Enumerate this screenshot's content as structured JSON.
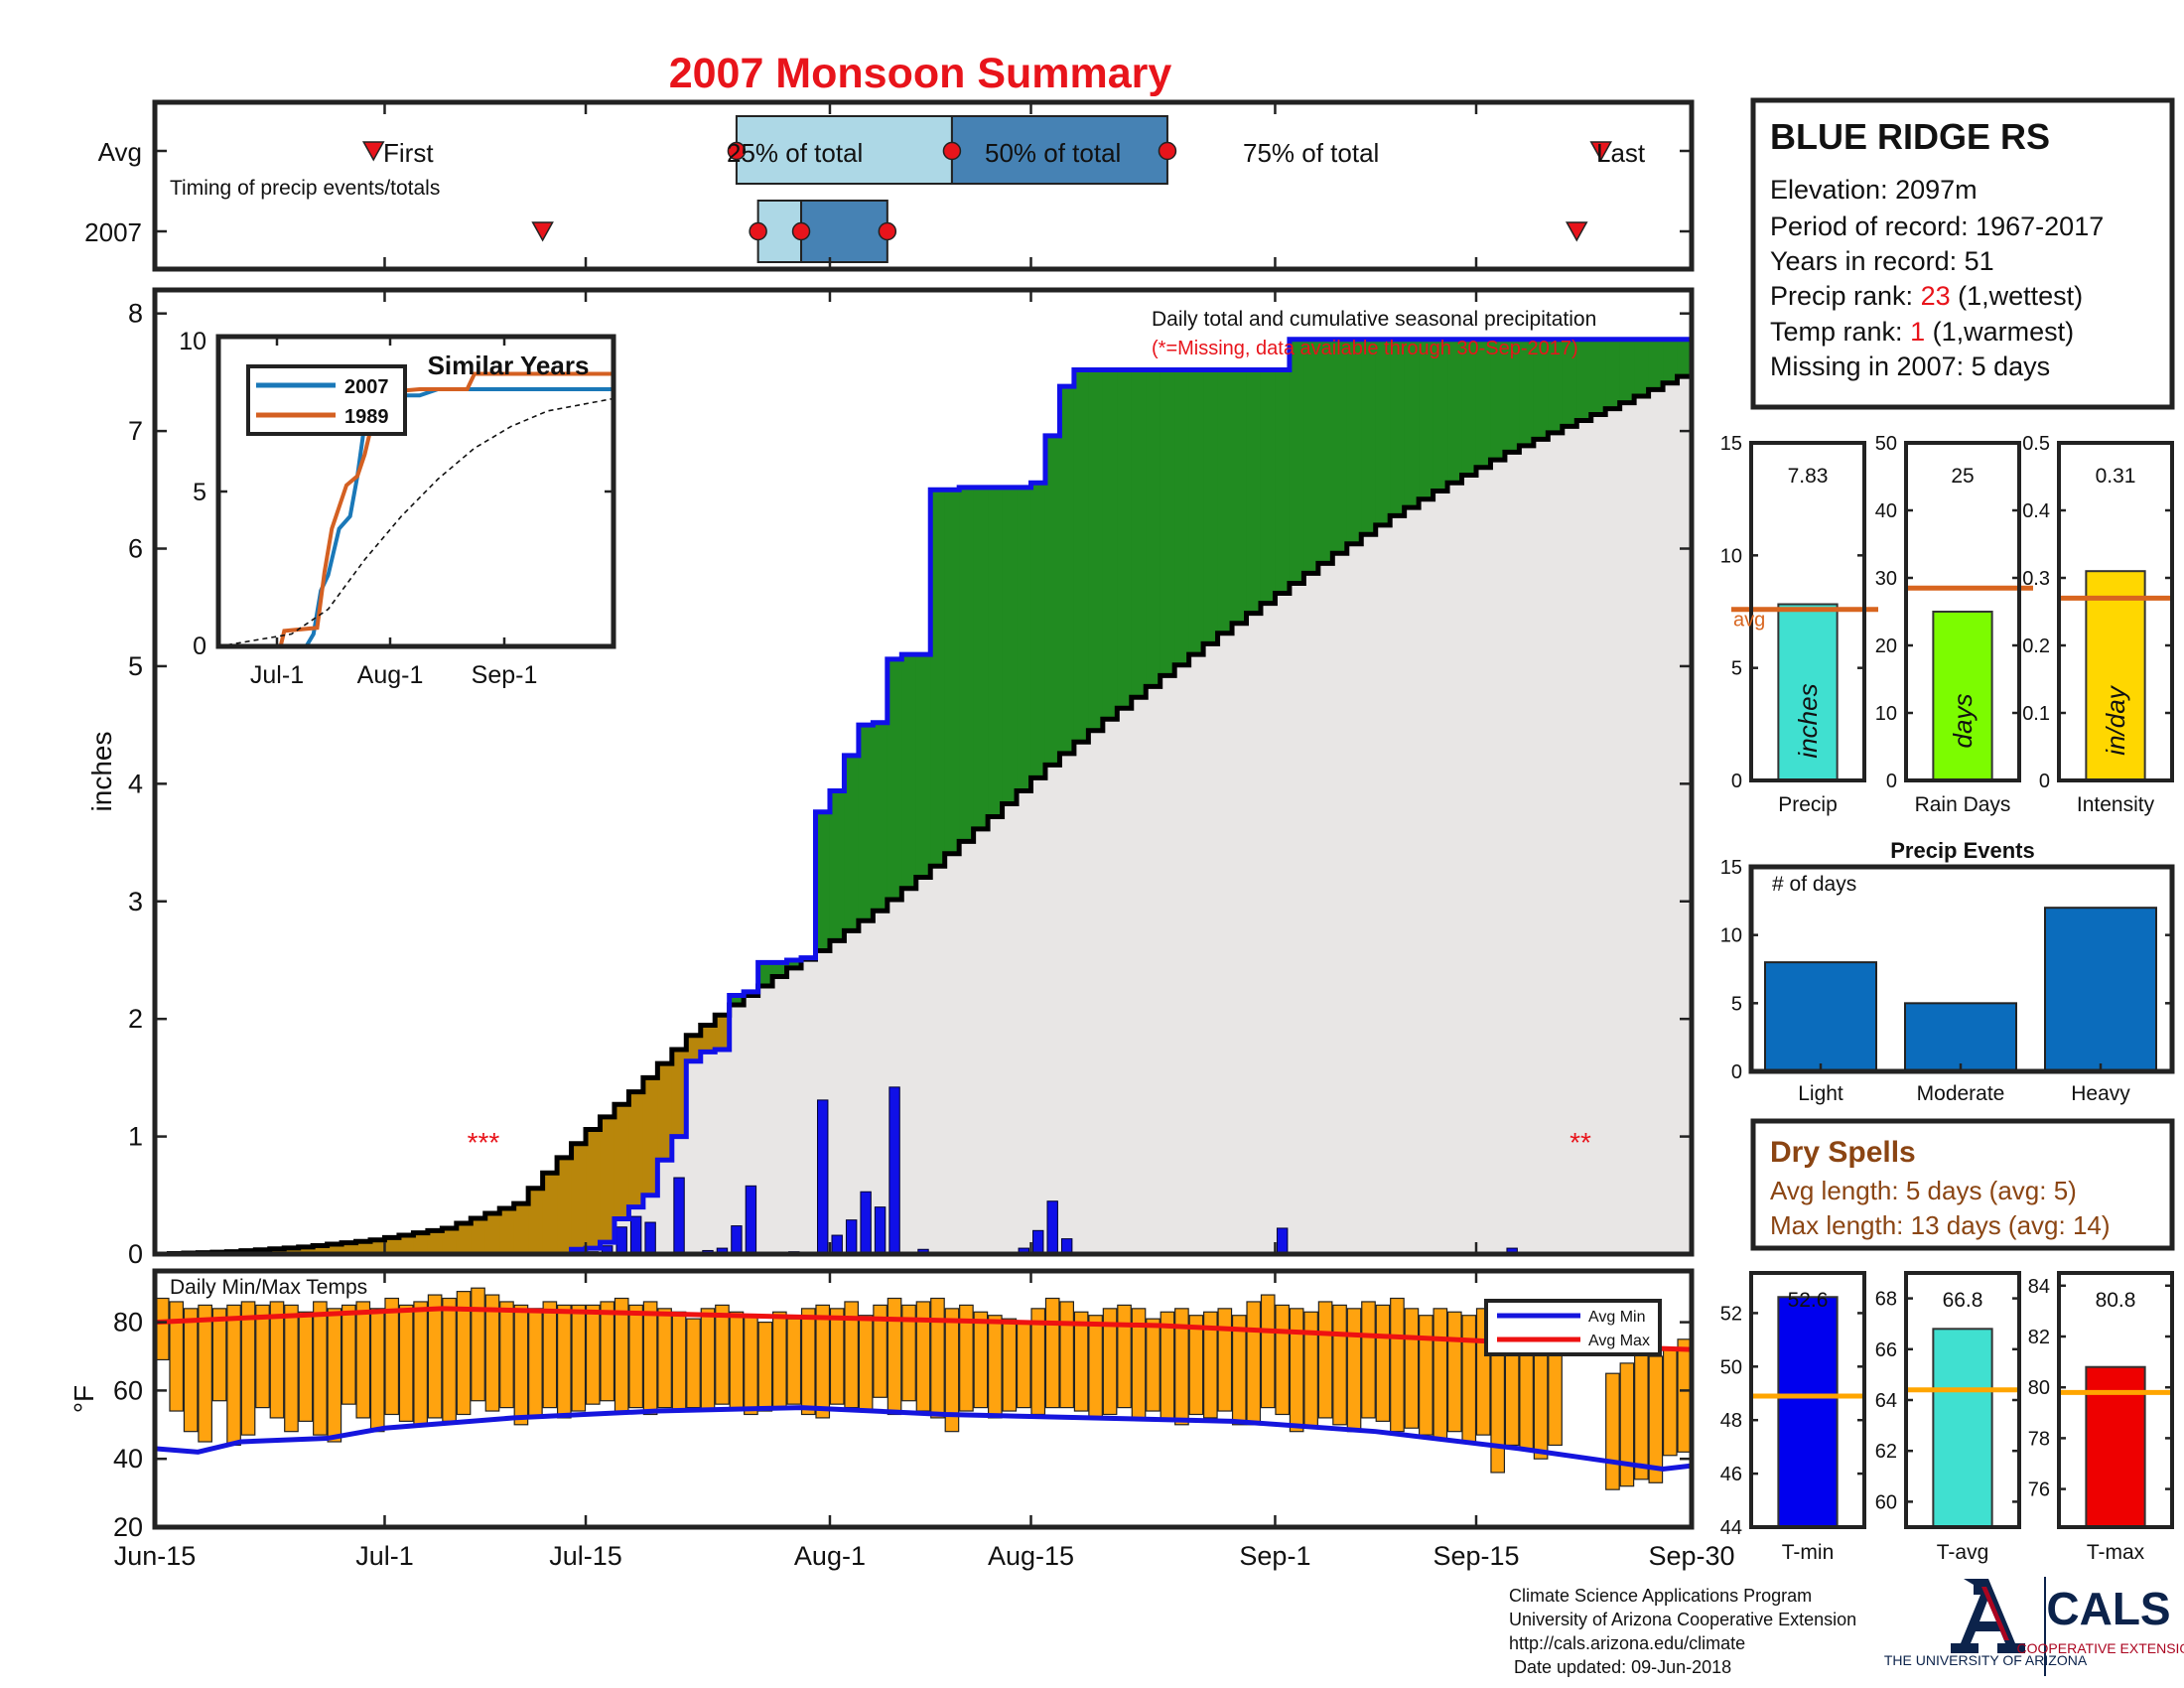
{
  "title": "2007 Monsoon Summary",
  "timing": {
    "row_labels": [
      "Avg",
      "2007"
    ],
    "caption": "Timing of precip events/totals",
    "avg_labels": {
      "first": "First",
      "p25": "25% of total",
      "p50": "50% of total",
      "p75": "75% of total",
      "last": "Last"
    },
    "avg_days": {
      "first": 15.5,
      "p25": 40.5,
      "p50": 55.5,
      "p75": 70.5,
      "last": 100
    }
  },
  "x_axis": {
    "ticks": [
      {
        "day": 0,
        "label": "Jun-15"
      },
      {
        "day": 16,
        "label": "Jul-1"
      },
      {
        "day": 30,
        "label": "Jul-15"
      },
      {
        "day": 47,
        "label": "Aug-1"
      },
      {
        "day": 61,
        "label": "Aug-15"
      },
      {
        "day": 78,
        "label": "Sep-1"
      },
      {
        "day": 92,
        "label": "Sep-15"
      },
      {
        "day": 107,
        "label": "Sep-30"
      }
    ]
  },
  "station": {
    "name": "BLUE RIDGE RS",
    "elevation": "Elevation: 2097m",
    "period": "Period of record: 1967-2017",
    "years": "Years in record: 51",
    "precip_rank_label": "Precip rank: ",
    "precip_rank_value": "23",
    "precip_rank_suffix": " (1,wettest)",
    "temp_rank_label": "Temp rank: ",
    "temp_rank_value": "1",
    "temp_rank_suffix": " (1,warmest)",
    "missing": "Missing in 2007: 5 days"
  },
  "main_chart": {
    "ylabel": "inches",
    "yticks": [
      0,
      1,
      2,
      3,
      4,
      5,
      6,
      7,
      8
    ],
    "annotation": "Daily total and cumulative seasonal precipitation",
    "missing_note": "(*=Missing, data available through 30-Sep-2017)",
    "missing_marks": [
      "***",
      "**"
    ]
  },
  "inset": {
    "title": "Similar Years",
    "legend": [
      "2007",
      "1989"
    ],
    "xticks": [
      "Jul-1",
      "Aug-1",
      "Sep-1"
    ],
    "yticks": [
      "0",
      "5",
      "10"
    ]
  },
  "summary_bars": [
    {
      "label": "Precip",
      "unit": "inches",
      "value": "7.83",
      "avg_label": "avg",
      "yticks": [
        "0",
        "5",
        "10",
        "15"
      ]
    },
    {
      "label": "Rain Days",
      "unit": "days",
      "value": "25",
      "yticks": [
        "0",
        "10",
        "20",
        "30",
        "40",
        "50"
      ]
    },
    {
      "label": "Intensity",
      "unit": "in/day",
      "value": "0.31",
      "yticks": [
        "0",
        "0.1",
        "0.2",
        "0.3",
        "0.4",
        "0.5"
      ]
    }
  ],
  "precip_events": {
    "title": "Precip Events",
    "ylabel": "# of days",
    "categories": [
      "Light",
      "Moderate",
      "Heavy"
    ],
    "yticks": [
      "0",
      "5",
      "10",
      "15"
    ]
  },
  "dry_spells": {
    "title": "Dry Spells",
    "avg_length": "Avg length: 5 days (avg: 5)",
    "max_length": "Max length: 13 days (avg: 14)"
  },
  "temps": {
    "title": "Daily Min/Max Temps",
    "ylabel": "°F",
    "yticks": [
      "20",
      "40",
      "60",
      "80"
    ],
    "legend": [
      "Avg Min",
      "Avg Max"
    ]
  },
  "temp_bars": [
    {
      "label": "T-min",
      "value": "52.6",
      "yticks": [
        "44",
        "46",
        "48",
        "50",
        "52"
      ]
    },
    {
      "label": "T-avg",
      "value": "66.8",
      "yticks": [
        "60",
        "62",
        "64",
        "66",
        "68"
      ]
    },
    {
      "label": "T-max",
      "value": "80.8",
      "yticks": [
        "76",
        "78",
        "80",
        "82",
        "84"
      ]
    }
  ],
  "footer": {
    "lines": [
      "Climate Science Applications Program",
      "University of Arizona Cooperative Extension",
      "http://cals.arizona.edu/climate",
      " Date updated: 09-Jun-2018"
    ],
    "ua_logo": "THE UNIVERSITY OF ARIZONA",
    "cals_logo": "CALS",
    "cals_sub": "COOPERATIVE EXTENSION"
  },
  "colors": {
    "title": "#e8141b",
    "above_avg": "#218b21",
    "below_avg": "#b8860b",
    "avg_fill": "#e8e6e5",
    "daily_bar": "#1010e8",
    "cum_2007": "#1010e8",
    "temp_bar": "#ffa30f",
    "avg_max": "#ee1111",
    "avg_min": "#1515dd",
    "line_2007": "#1a78b8",
    "line_1989": "#d46022",
    "avg_ref": "#d8651f",
    "precip_bar": "#40e0d0",
    "raindays_bar": "#7cfc00",
    "intensity_bar": "#ffd700",
    "events_bar": "#0b6cbc",
    "tmin_bar": "#0000ee",
    "tavg_bar": "#40e0d0",
    "tmax_bar": "#ee0000",
    "tref": "#ffa500",
    "dry": "#8b4513",
    "ua_navy": "#0c234b",
    "ua_red": "#ab0520"
  },
  "chart_data": [
    {
      "type": "area",
      "name": "daily and cumulative seasonal precipitation",
      "x_unit": "days after Jun-15",
      "ylim": [
        0,
        8.2
      ],
      "cumulative_2007": [
        [
          0,
          0
        ],
        [
          29,
          0.04
        ],
        [
          30,
          0.05
        ],
        [
          31,
          0.1
        ],
        [
          32,
          0.3
        ],
        [
          33,
          0.4
        ],
        [
          34,
          0.5
        ],
        [
          35,
          0.8
        ],
        [
          36,
          1.0
        ],
        [
          37,
          1.64
        ],
        [
          38,
          1.72
        ],
        [
          39,
          1.74
        ],
        [
          40,
          2.2
        ],
        [
          41,
          2.23
        ],
        [
          42,
          2.48
        ],
        [
          43,
          2.48
        ],
        [
          44,
          2.5
        ],
        [
          45,
          2.52
        ],
        [
          46,
          3.76
        ],
        [
          47,
          3.94
        ],
        [
          48,
          4.24
        ],
        [
          49,
          4.5
        ],
        [
          50,
          4.52
        ],
        [
          51,
          5.06
        ],
        [
          52,
          5.1
        ],
        [
          53,
          5.1
        ],
        [
          54,
          6.5
        ],
        [
          55,
          6.5
        ],
        [
          56,
          6.52
        ],
        [
          60,
          6.52
        ],
        [
          61,
          6.56
        ],
        [
          62,
          6.96
        ],
        [
          63,
          7.38
        ],
        [
          64,
          7.52
        ],
        [
          78,
          7.52
        ],
        [
          79,
          7.78
        ],
        [
          95,
          7.78
        ],
        [
          107,
          7.83
        ]
      ],
      "average_cumulative": [
        [
          0,
          0
        ],
        [
          5,
          0.02
        ],
        [
          10,
          0.06
        ],
        [
          15,
          0.12
        ],
        [
          20,
          0.22
        ],
        [
          25,
          0.43
        ],
        [
          28,
          0.82
        ],
        [
          30,
          1.06
        ],
        [
          33,
          1.38
        ],
        [
          35,
          1.62
        ],
        [
          37,
          1.86
        ],
        [
          40,
          2.12
        ],
        [
          43,
          2.36
        ],
        [
          46,
          2.58
        ],
        [
          50,
          2.92
        ],
        [
          54,
          3.3
        ],
        [
          58,
          3.72
        ],
        [
          62,
          4.16
        ],
        [
          66,
          4.55
        ],
        [
          70,
          4.92
        ],
        [
          74,
          5.28
        ],
        [
          78,
          5.62
        ],
        [
          82,
          5.96
        ],
        [
          86,
          6.28
        ],
        [
          90,
          6.56
        ],
        [
          94,
          6.82
        ],
        [
          98,
          7.04
        ],
        [
          102,
          7.24
        ],
        [
          107,
          7.52
        ]
      ],
      "daily_precip": [
        [
          29,
          0.04
        ],
        [
          30,
          0.02
        ],
        [
          31,
          0.07
        ],
        [
          32,
          0.23
        ],
        [
          33,
          0.32
        ],
        [
          34,
          0.27
        ],
        [
          36,
          0.65
        ],
        [
          38,
          0.03
        ],
        [
          39,
          0.05
        ],
        [
          40,
          0.24
        ],
        [
          41,
          0.58
        ],
        [
          44,
          0.02
        ],
        [
          46,
          1.31
        ],
        [
          47,
          0.16
        ],
        [
          48,
          0.29
        ],
        [
          49,
          0.53
        ],
        [
          50,
          0.4
        ],
        [
          51,
          1.42
        ],
        [
          53,
          0.04
        ],
        [
          60,
          0.05
        ],
        [
          61,
          0.2
        ],
        [
          62,
          0.45
        ],
        [
          63,
          0.13
        ],
        [
          78,
          0.22
        ],
        [
          94,
          0.05
        ]
      ],
      "similar_years_inset": {
        "xticks": [
          "Jul-1",
          "Aug-1",
          "Sep-1"
        ],
        "ylim": [
          0,
          10
        ],
        "series": [
          {
            "name": "2007",
            "points": [
              [
                0,
                0
              ],
              [
                24,
                0
              ],
              [
                26,
                0.4
              ],
              [
                28,
                1.8
              ],
              [
                30,
                2.3
              ],
              [
                33,
                3.8
              ],
              [
                36,
                4.2
              ],
              [
                38,
                5.5
              ],
              [
                40,
                7.2
              ],
              [
                43,
                8.1
              ],
              [
                55,
                8.1
              ],
              [
                60,
                8.3
              ],
              [
                80,
                8.3
              ],
              [
                108,
                8.3
              ]
            ]
          },
          {
            "name": "1989",
            "points": [
              [
                0,
                0
              ],
              [
                17,
                0
              ],
              [
                18,
                0.5
              ],
              [
                27,
                0.6
              ],
              [
                29,
                2.4
              ],
              [
                31,
                3.8
              ],
              [
                33,
                4.5
              ],
              [
                35,
                5.2
              ],
              [
                38,
                5.5
              ],
              [
                40,
                6.2
              ],
              [
                42,
                7.2
              ],
              [
                45,
                8.2
              ],
              [
                55,
                8.3
              ],
              [
                68,
                8.3
              ],
              [
                70,
                8.8
              ],
              [
                108,
                8.8
              ]
            ]
          },
          {
            "name": "average",
            "points": [
              [
                0,
                0
              ],
              [
                20,
                0.4
              ],
              [
                30,
                1.2
              ],
              [
                40,
                2.8
              ],
              [
                50,
                4.2
              ],
              [
                60,
                5.4
              ],
              [
                70,
                6.4
              ],
              [
                80,
                7.1
              ],
              [
                90,
                7.6
              ],
              [
                108,
                8.0
              ]
            ]
          }
        ]
      }
    },
    {
      "type": "bar",
      "name": "season summary",
      "categories": [
        "Precip",
        "Rain Days",
        "Intensity"
      ],
      "values": [
        7.83,
        25,
        0.31
      ],
      "averages": [
        7.6,
        28.5,
        0.27
      ],
      "ylims": [
        [
          0,
          15
        ],
        [
          0,
          50
        ],
        [
          0,
          0.5
        ]
      ]
    },
    {
      "type": "bar",
      "name": "precip events",
      "categories": [
        "Light",
        "Moderate",
        "Heavy"
      ],
      "values": [
        8,
        5,
        12
      ],
      "ylim": [
        0,
        15
      ]
    },
    {
      "type": "bar",
      "name": "daily min/max temps",
      "x_unit": "days after Jun-15",
      "ylim": [
        20,
        95
      ],
      "max_temps": [
        87,
        86,
        84,
        85,
        84,
        85,
        86,
        85,
        86,
        85,
        83,
        86,
        84,
        85,
        86,
        84,
        87,
        85,
        86,
        88,
        87,
        89,
        90,
        88,
        86,
        85,
        84,
        86,
        85,
        85,
        85,
        86,
        87,
        85,
        86,
        84,
        83,
        81,
        84,
        85,
        83,
        82,
        80,
        83,
        81,
        84,
        85,
        84,
        86,
        82,
        85,
        87,
        85,
        86,
        87,
        84,
        85,
        83,
        82,
        81,
        80,
        84,
        87,
        86,
        83,
        82,
        84,
        85,
        84,
        81,
        83,
        84,
        82,
        83,
        84,
        82,
        86,
        88,
        85,
        84,
        83,
        86,
        85,
        84,
        86,
        85,
        87,
        84,
        82,
        84,
        83,
        82,
        84,
        82,
        85,
        83,
        81,
        80,
        82,
        83,
        84,
        65,
        68,
        78,
        70,
        72,
        75
      ],
      "min_temps": [
        69,
        54,
        48,
        45,
        57,
        44,
        47,
        55,
        52,
        48,
        51,
        47,
        45,
        56,
        52,
        48,
        53,
        51,
        50,
        52,
        51,
        53,
        57,
        54,
        55,
        50,
        52,
        55,
        52,
        54,
        56,
        57,
        54,
        55,
        53,
        55,
        54,
        55,
        54,
        56,
        55,
        53,
        54,
        55,
        56,
        53,
        52,
        56,
        55,
        54,
        58,
        53,
        57,
        54,
        52,
        48,
        54,
        55,
        52,
        54,
        55,
        53,
        55,
        55,
        54,
        52,
        53,
        55,
        52,
        54,
        51,
        50,
        53,
        52,
        54,
        50,
        50,
        55,
        53,
        48,
        49,
        52,
        50,
        48,
        52,
        51,
        48,
        49,
        47,
        46,
        48,
        45,
        47,
        36,
        44,
        43,
        40,
        44,
        42,
        43,
        40,
        31,
        32,
        34,
        33,
        41,
        42
      ],
      "avg_max": [
        [
          0,
          80
        ],
        [
          10,
          82
        ],
        [
          20,
          84
        ],
        [
          30,
          83
        ],
        [
          40,
          82
        ],
        [
          50,
          81
        ],
        [
          60,
          80
        ],
        [
          70,
          79
        ],
        [
          80,
          77
        ],
        [
          90,
          75
        ],
        [
          100,
          73
        ],
        [
          107,
          72
        ]
      ],
      "avg_min": [
        [
          0,
          43
        ],
        [
          3,
          42
        ],
        [
          6,
          45
        ],
        [
          12,
          46
        ],
        [
          16,
          49
        ],
        [
          25,
          52
        ],
        [
          35,
          54
        ],
        [
          45,
          55
        ],
        [
          55,
          53
        ],
        [
          65,
          52
        ],
        [
          75,
          51
        ],
        [
          85,
          48
        ],
        [
          95,
          43
        ],
        [
          100,
          40
        ],
        [
          105,
          37
        ],
        [
          107,
          38
        ]
      ]
    },
    {
      "type": "bar",
      "name": "season temperatures",
      "categories": [
        "T-min",
        "T-avg",
        "T-max"
      ],
      "values": [
        52.6,
        66.8,
        80.8
      ],
      "averages": [
        48.9,
        64.4,
        79.8
      ],
      "ylims": [
        [
          44,
          53.5
        ],
        [
          59,
          69
        ],
        [
          74.5,
          84.5
        ]
      ]
    }
  ]
}
